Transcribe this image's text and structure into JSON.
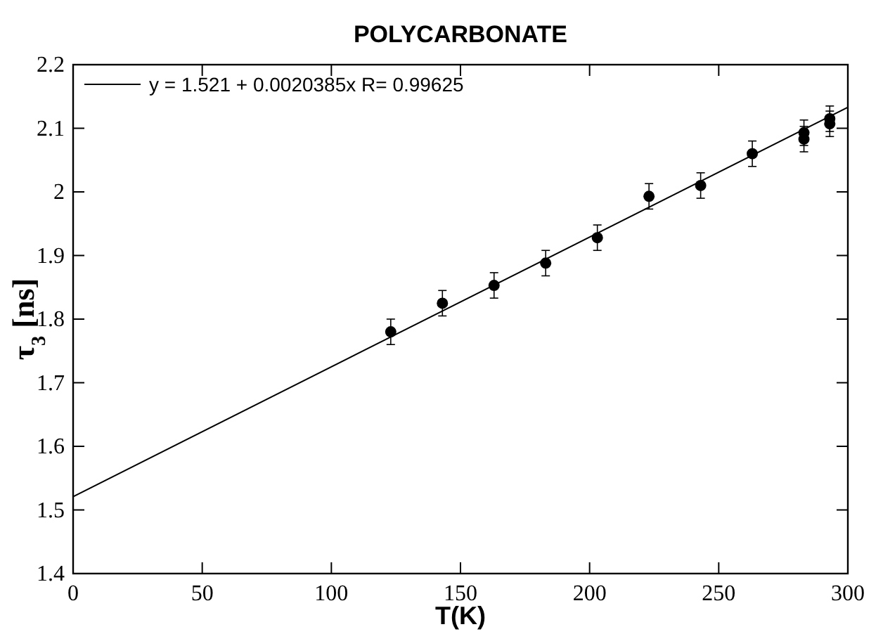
{
  "chart_data": {
    "type": "scatter",
    "title": "POLYCARBONATE",
    "xlabel": "T(K)",
    "ylabel": "τ$_{3}$ [ns]",
    "xlim": [
      0,
      300
    ],
    "xticks": [
      0,
      50,
      100,
      150,
      200,
      250,
      300
    ],
    "ylim": [
      1.4,
      2.2
    ],
    "yticks": [
      1.4,
      1.5,
      1.6,
      1.7,
      1.8,
      1.9,
      2,
      2.1,
      2.2
    ],
    "grid": false,
    "legend": "top left",
    "series": [
      {
        "marker": "circle",
        "color": "#000000",
        "x": [
          123,
          143,
          163,
          183,
          203,
          223,
          243,
          263,
          283,
          283,
          293,
          293
        ],
        "values": [
          1.78,
          1.825,
          1.853,
          1.888,
          1.928,
          1.993,
          2.01,
          2.06,
          2.083,
          2.093,
          2.107,
          2.115
        ],
        "errors": [
          0.02,
          0.02,
          0.02,
          0.02,
          0.02,
          0.02,
          0.02,
          0.02,
          0.02,
          0.02,
          0.02,
          0.02
        ]
      },
      {
        "type": "line",
        "name": "y = 1.521 + 0.0020385x R= 0.99625",
        "color": "#000000",
        "x": [
          0,
          300
        ],
        "values": [
          1.521,
          2.133
        ]
      }
    ]
  }
}
